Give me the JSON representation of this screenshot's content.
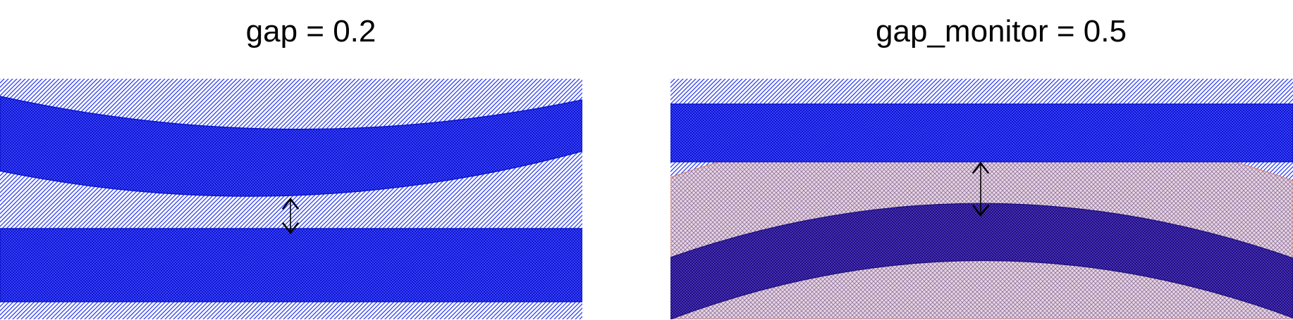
{
  "panels": [
    {
      "title": "gap = 0.2"
    },
    {
      "title": "gap_monitor = 0.5"
    }
  ],
  "colors": {
    "cladding_hatch": "#2b3cf0",
    "core_fill": "#3a40ff",
    "core_check": "#0b16c8",
    "monitor_fill": "#ead6e2",
    "monitor_hatch": "#3a1f66",
    "monitor_edge": "#d9857a",
    "arrow": "#000000"
  }
}
